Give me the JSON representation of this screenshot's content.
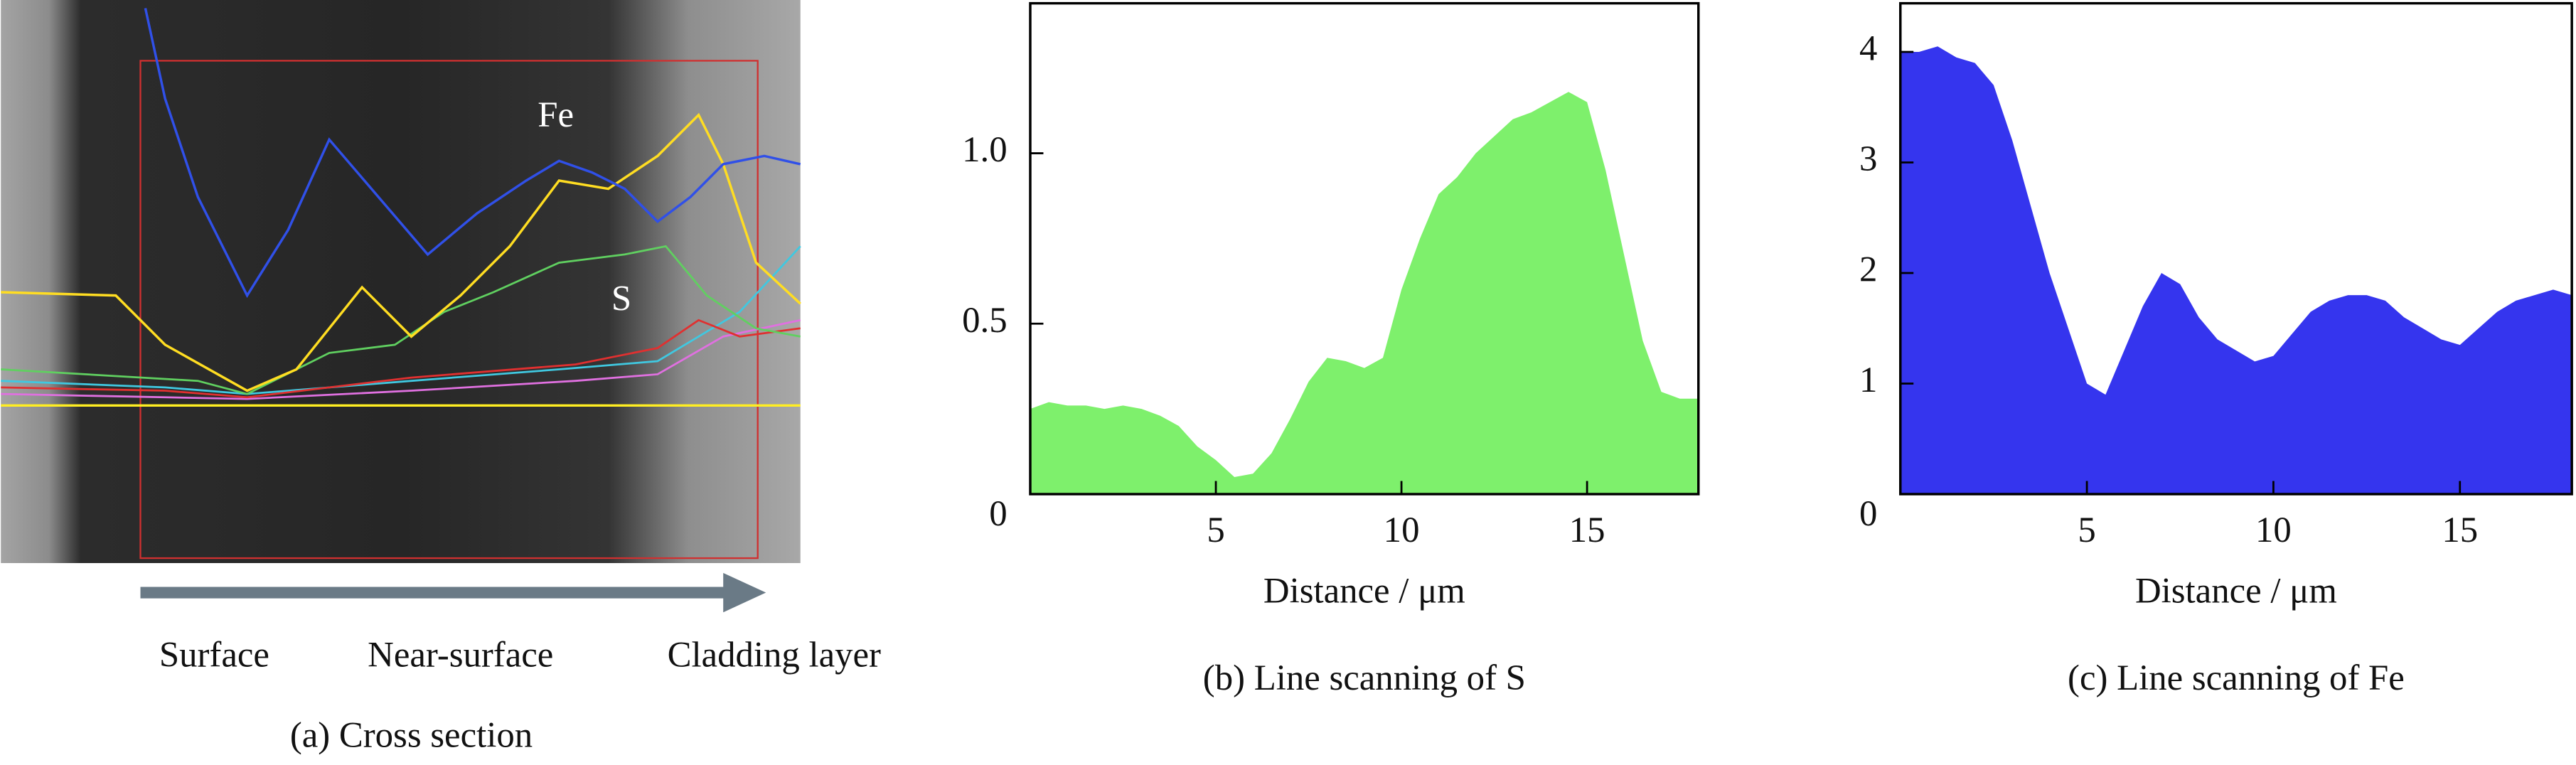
{
  "panel_a": {
    "fe_label": "Fe",
    "s_label": "S",
    "regions": [
      "Surface",
      "Near-surface",
      "Cladding layer"
    ],
    "caption": "(a) Cross section"
  },
  "chart_data": [
    {
      "type": "area",
      "title": "(b) Line scanning of S",
      "x_label": "Distance / μm",
      "color": "#7ef06c",
      "x": [
        0,
        0.5,
        1,
        1.5,
        2,
        2.5,
        3,
        3.5,
        4,
        4.5,
        5,
        5.5,
        6,
        6.5,
        7,
        7.5,
        8,
        8.5,
        9,
        9.5,
        10,
        10.5,
        11,
        11.5,
        12,
        12.5,
        13,
        13.5,
        14,
        14.5,
        15,
        15.5,
        16,
        16.5,
        17,
        17.5,
        18
      ],
      "values": [
        0.25,
        0.27,
        0.26,
        0.26,
        0.25,
        0.26,
        0.25,
        0.23,
        0.2,
        0.14,
        0.1,
        0.05,
        0.06,
        0.12,
        0.22,
        0.33,
        0.4,
        0.39,
        0.37,
        0.4,
        0.6,
        0.75,
        0.88,
        0.93,
        1.0,
        1.05,
        1.1,
        1.12,
        1.15,
        1.18,
        1.15,
        0.95,
        0.7,
        0.45,
        0.3,
        0.28,
        0.28
      ],
      "xlim": [
        0,
        18
      ],
      "xticks": [
        5,
        10,
        15
      ],
      "ylim": [
        0,
        1.44
      ],
      "yticks": [
        0,
        0.5,
        {
          "value": 1,
          "label": "1.0"
        }
      ]
    },
    {
      "type": "area",
      "title": "(c) Line scanning of Fe",
      "x_label": "Distance / μm",
      "color": "#3535ee",
      "x": [
        0,
        0.5,
        1,
        1.5,
        2,
        2.5,
        3,
        3.5,
        4,
        4.5,
        5,
        5.5,
        6,
        6.5,
        7,
        7.5,
        8,
        8.5,
        9,
        9.5,
        10,
        10.5,
        11,
        11.5,
        12,
        12.5,
        13,
        13.5,
        14,
        14.5,
        15,
        15.5,
        16,
        16.5,
        17,
        17.5,
        18
      ],
      "values": [
        4.0,
        4.0,
        4.05,
        3.95,
        3.9,
        3.7,
        3.2,
        2.6,
        2.0,
        1.5,
        1.0,
        0.9,
        1.3,
        1.7,
        2.0,
        1.9,
        1.6,
        1.4,
        1.3,
        1.2,
        1.25,
        1.45,
        1.65,
        1.75,
        1.8,
        1.8,
        1.75,
        1.6,
        1.5,
        1.4,
        1.35,
        1.5,
        1.65,
        1.75,
        1.8,
        1.85,
        1.8
      ],
      "xlim": [
        0,
        18
      ],
      "xticks": [
        5,
        10,
        15
      ],
      "ylim": [
        0,
        4.44
      ],
      "yticks": [
        0,
        1,
        2,
        3,
        4
      ]
    }
  ]
}
